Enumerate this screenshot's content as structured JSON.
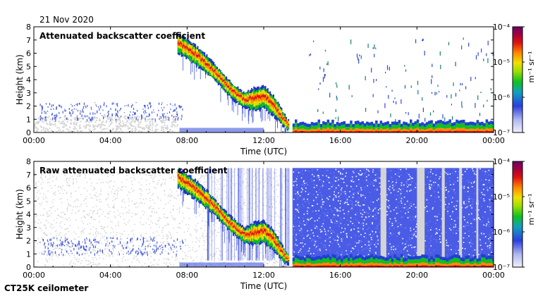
{
  "header": {
    "date": "21 Nov 2020",
    "instrument": "CT25K ceilometer"
  },
  "colors": {
    "cloud_gray": "#d4d4d4",
    "noise_blue": "#2a3fe0",
    "low_blue": "#3048d8",
    "signal_green": "#10c020",
    "signal_yellow": "#f0e000",
    "signal_orange": "#ff8a00",
    "signal_red": "#e01010",
    "colorbar_bottom": "#f0f0ff",
    "colorbar_top": "#6a006a"
  },
  "chart_data": [
    {
      "type": "heatmap",
      "title": "Attenuated backscatter coefficient",
      "xlabel": "Time (UTC)",
      "ylabel": "Height (km)",
      "x_ticks": [
        "00:00",
        "04:00",
        "08:00",
        "12:00",
        "16:00",
        "20:00",
        "00:00"
      ],
      "xlim_hours": [
        0,
        24
      ],
      "y_ticks": [
        "0",
        "1",
        "2",
        "3",
        "4",
        "5",
        "6",
        "7",
        "8"
      ],
      "ylim_km": [
        0,
        8
      ],
      "colorbar": {
        "label": "m⁻¹ sr⁻¹",
        "ticks": [
          "10⁻⁷",
          "10⁻⁶",
          "10⁻⁵",
          "10⁻⁴"
        ]
      },
      "cloud_layer": {
        "time_h": [
          7.5,
          8.0,
          8.5,
          9.0,
          9.5,
          10.0,
          10.5,
          11.0,
          11.5,
          12.0,
          12.5,
          13.0,
          13.3
        ],
        "top_km": [
          7.5,
          7.0,
          6.5,
          5.8,
          5.0,
          4.2,
          3.5,
          3.0,
          3.4,
          3.5,
          2.8,
          1.5,
          0.8
        ],
        "base_km": [
          6.0,
          5.5,
          5.0,
          4.4,
          3.8,
          3.0,
          2.3,
          1.8,
          1.6,
          1.8,
          1.2,
          0.4,
          0.2
        ]
      },
      "boundary_layer_top_km": 0.5,
      "boundary_layer_start_h": 13.5,
      "shows_raw_noise": false
    },
    {
      "type": "heatmap",
      "title": "Raw attenuated backscatter coefficient",
      "xlabel": "Time (UTC)",
      "ylabel": "Height (km)",
      "x_ticks": [
        "00:00",
        "04:00",
        "08:00",
        "12:00",
        "16:00",
        "20:00",
        "00:00"
      ],
      "xlim_hours": [
        0,
        24
      ],
      "y_ticks": [
        "0",
        "1",
        "2",
        "3",
        "4",
        "5",
        "6",
        "7",
        "8"
      ],
      "ylim_km": [
        0,
        8
      ],
      "colorbar": {
        "label": "m⁻¹ sr⁻¹",
        "ticks": [
          "10⁻⁷",
          "10⁻⁶",
          "10⁻⁵",
          "10⁻⁴"
        ]
      },
      "cloud_layer": {
        "time_h": [
          7.5,
          8.0,
          8.5,
          9.0,
          9.5,
          10.0,
          10.5,
          11.0,
          11.5,
          12.0,
          12.5,
          13.0,
          13.3
        ],
        "top_km": [
          7.5,
          7.0,
          6.5,
          5.8,
          5.0,
          4.2,
          3.5,
          3.0,
          3.4,
          3.5,
          2.8,
          1.5,
          0.8
        ],
        "base_km": [
          6.0,
          5.5,
          5.0,
          4.4,
          3.8,
          3.0,
          2.3,
          1.8,
          1.6,
          1.8,
          1.2,
          0.4,
          0.2
        ]
      },
      "boundary_layer_top_km": 0.5,
      "boundary_layer_start_h": 13.5,
      "shows_raw_noise": true,
      "noise_gaps_hours": [
        [
          18.1,
          18.4
        ],
        [
          20.0,
          20.4
        ],
        [
          21.3,
          21.45
        ],
        [
          22.2,
          22.35
        ],
        [
          23.1,
          23.2
        ]
      ]
    }
  ]
}
